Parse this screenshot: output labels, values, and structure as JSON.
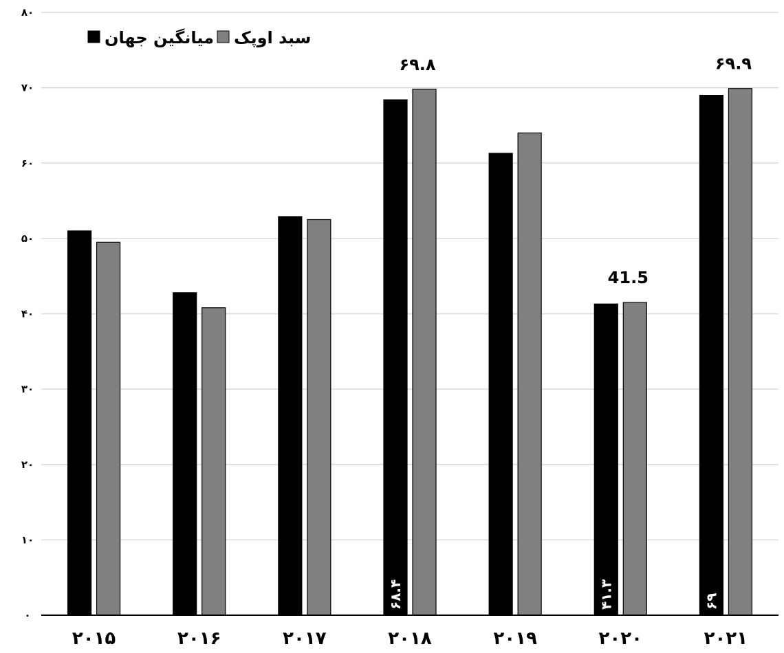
{
  "chart_data": {
    "type": "bar",
    "categories": [
      "۲۰۱۵",
      "۲۰۱۶",
      "۲۰۱۷",
      "۲۰۱۸",
      "۲۰۱۹",
      "۲۰۲۰",
      "۲۰۲۱"
    ],
    "series": [
      {
        "name": "میانگین جهان",
        "color": "#000000",
        "values": [
          51.0,
          42.8,
          52.9,
          68.4,
          61.3,
          41.3,
          69.0
        ],
        "data_labels": [
          null,
          null,
          null,
          "۶۸.۴",
          null,
          "۴۱.۳",
          "۶۹"
        ]
      },
      {
        "name": "سبد اوپک",
        "color": "#808080",
        "values": [
          49.5,
          40.8,
          52.5,
          69.8,
          64.0,
          41.5,
          69.9
        ],
        "data_labels": [
          null,
          null,
          null,
          "۶۹.۸",
          null,
          "41.5",
          "۶۹.۹"
        ]
      }
    ],
    "ylim": [
      0,
      80
    ],
    "yticks": [
      0,
      10,
      20,
      30,
      40,
      50,
      60,
      70,
      80
    ],
    "ytick_labels": [
      "۰",
      "۱۰",
      "۲۰",
      "۳۰",
      "۴۰",
      "۵۰",
      "۶۰",
      "۷۰",
      "۸۰"
    ],
    "grid": true,
    "legend_position": "top-left",
    "title": "",
    "xlabel": "",
    "ylabel": ""
  }
}
